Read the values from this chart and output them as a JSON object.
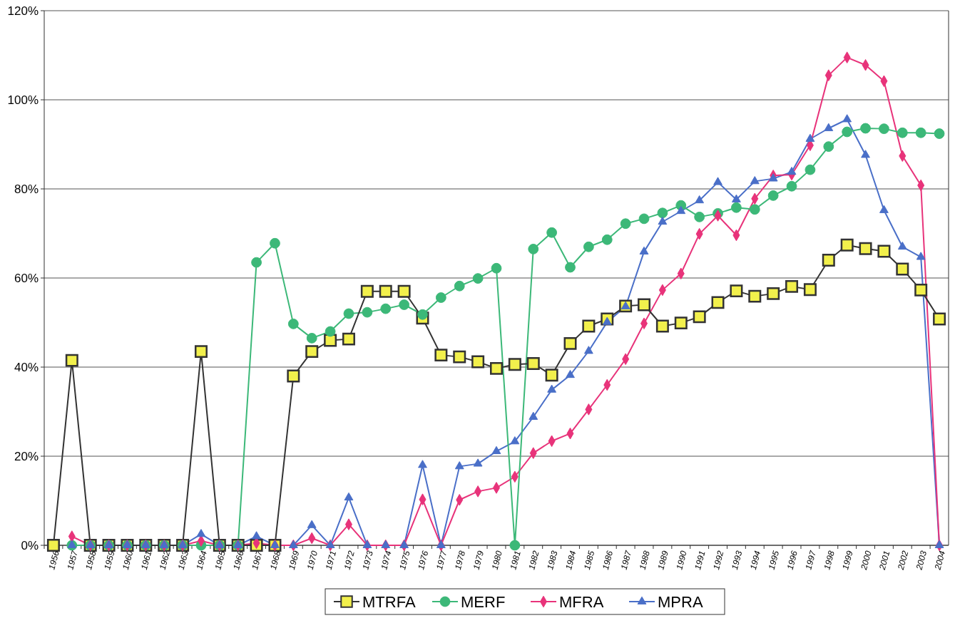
{
  "chart_data": {
    "type": "line",
    "categories": [
      "1956",
      "1957",
      "1958",
      "1959",
      "1960",
      "1961",
      "1962",
      "1963",
      "1964",
      "1965",
      "1966",
      "1967",
      "1968",
      "1969",
      "1970",
      "1971",
      "1972",
      "1973",
      "1974",
      "1975",
      "1976",
      "1977",
      "1978",
      "1979",
      "1980",
      "1981",
      "1982",
      "1983",
      "1984",
      "1985",
      "1986",
      "1987",
      "1988",
      "1989",
      "1990",
      "1991",
      "1992",
      "1993",
      "1994",
      "1995",
      "1996",
      "1997",
      "1998",
      "1999",
      "2000",
      "2001",
      "2002",
      "2003",
      "2004"
    ],
    "series": [
      {
        "name": "MTRFA",
        "color": "#f2f04c",
        "marker": "square",
        "values": [
          0,
          41.5,
          0,
          0,
          0,
          0,
          0,
          0,
          43.5,
          0,
          0,
          0,
          0,
          38,
          43.5,
          46,
          46.3,
          57,
          57,
          57,
          51,
          42.7,
          42.3,
          41.2,
          39.7,
          40.6,
          40.8,
          38.2,
          45.3,
          49.2,
          50.8,
          53.7,
          54,
          49.2,
          49.9,
          51.3,
          54.5,
          57.1,
          55.9,
          56.5,
          58.1,
          57.4,
          64,
          67.4,
          66.6,
          66,
          62,
          57.3,
          50.8
        ]
      },
      {
        "name": "MERF",
        "color": "#3cb878",
        "marker": "circle",
        "values": [
          null,
          0,
          0,
          0,
          0,
          0,
          0,
          0,
          0,
          0,
          0,
          63.5,
          67.8,
          49.7,
          46.5,
          48,
          52,
          52.3,
          53.1,
          54,
          51.8,
          55.6,
          58.2,
          59.9,
          62.2,
          0,
          66.5,
          70.2,
          62.4,
          67,
          68.6,
          72.2,
          73.3,
          74.6,
          76.3,
          73.7,
          74.5,
          75.8,
          75.4,
          78.5,
          80.6,
          84.3,
          89.5,
          92.8,
          93.6,
          93.5,
          92.6,
          92.6,
          92.4
        ]
      },
      {
        "name": "MFRA",
        "color": "#e8337a",
        "marker": "diamond",
        "values": [
          null,
          2,
          0,
          0,
          0,
          0,
          0,
          0,
          1,
          0,
          0,
          0.5,
          0,
          0,
          1.6,
          0,
          4.7,
          0,
          0,
          0,
          10.3,
          0,
          10.2,
          12.1,
          12.9,
          15.4,
          20.7,
          23.4,
          25.1,
          30.5,
          36,
          41.8,
          49.8,
          57.3,
          61,
          69.9,
          74,
          69.6,
          77.8,
          83,
          83.2,
          89.8,
          105.5,
          109.5,
          107.8,
          104.2,
          87.4,
          80.8,
          0
        ]
      },
      {
        "name": "MPRA",
        "color": "#4a6fc8",
        "marker": "triangle",
        "values": [
          null,
          0,
          0,
          0,
          0,
          0,
          0,
          0,
          2.5,
          0,
          0,
          2,
          0,
          0,
          4.5,
          0,
          10.7,
          0,
          0,
          0,
          18,
          0,
          17.7,
          18.3,
          21.1,
          23.3,
          28.8,
          34.9,
          38.2,
          43.6,
          50.1,
          53.6,
          65.9,
          72.6,
          75,
          77.4,
          81.5,
          77.6,
          81.7,
          82.3,
          83.8,
          91.2,
          93.6,
          95.6,
          87.6,
          75.2,
          67,
          64.7,
          0
        ]
      }
    ],
    "ylim": [
      0,
      120
    ],
    "yticks": [
      {
        "value": 0,
        "label": "0%"
      },
      {
        "value": 20,
        "label": "20%"
      },
      {
        "value": 40,
        "label": "40%"
      },
      {
        "value": 60,
        "label": "60%"
      },
      {
        "value": 80,
        "label": "80%"
      },
      {
        "value": 100,
        "label": "100%"
      },
      {
        "value": 120,
        "label": "120%"
      }
    ],
    "grid": "y",
    "legend": "bottom",
    "line_style": "solid"
  }
}
